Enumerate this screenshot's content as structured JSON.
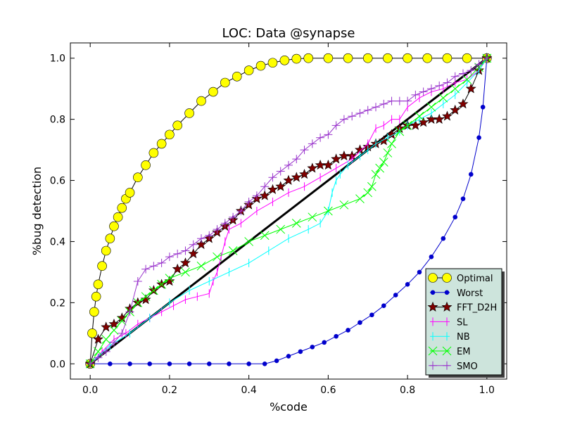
{
  "chart_data": {
    "type": "line",
    "title": "LOC: Data @synapse",
    "xlabel": "%code",
    "ylabel": "%bug detection",
    "xlim": [
      -0.05,
      1.05
    ],
    "ylim": [
      -0.05,
      1.05
    ],
    "xticks": [
      "0.0",
      "0.2",
      "0.4",
      "0.6",
      "0.8",
      "1.0"
    ],
    "yticks": [
      "0.0",
      "0.2",
      "0.4",
      "0.6",
      "0.8",
      "1.0"
    ],
    "grid": false,
    "legend_position": "bottom-right",
    "series": [
      {
        "name": "Optimal",
        "color": "#ffff00",
        "marker": "circle-large",
        "x": [
          0,
          0.005,
          0.01,
          0.015,
          0.02,
          0.03,
          0.04,
          0.05,
          0.06,
          0.07,
          0.08,
          0.09,
          0.1,
          0.12,
          0.14,
          0.16,
          0.18,
          0.2,
          0.22,
          0.25,
          0.28,
          0.31,
          0.34,
          0.37,
          0.4,
          0.43,
          0.46,
          0.49,
          0.52,
          0.55,
          0.6,
          0.65,
          0.7,
          0.75,
          0.8,
          0.85,
          0.9,
          0.95,
          1.0
        ],
        "y": [
          0,
          0.1,
          0.17,
          0.22,
          0.26,
          0.32,
          0.37,
          0.41,
          0.45,
          0.48,
          0.51,
          0.54,
          0.56,
          0.61,
          0.65,
          0.69,
          0.72,
          0.75,
          0.78,
          0.82,
          0.86,
          0.89,
          0.92,
          0.94,
          0.96,
          0.975,
          0.985,
          0.993,
          0.998,
          1.0,
          1.0,
          1.0,
          1.0,
          1.0,
          1.0,
          1.0,
          1.0,
          1.0,
          1.0
        ]
      },
      {
        "name": "Worst",
        "color": "#0000cc",
        "marker": "dot",
        "x": [
          0,
          0.05,
          0.1,
          0.15,
          0.2,
          0.25,
          0.3,
          0.35,
          0.4,
          0.44,
          0.47,
          0.5,
          0.53,
          0.56,
          0.59,
          0.62,
          0.65,
          0.68,
          0.71,
          0.74,
          0.77,
          0.8,
          0.83,
          0.86,
          0.89,
          0.92,
          0.94,
          0.96,
          0.98,
          0.99,
          1.0
        ],
        "y": [
          0,
          0,
          0,
          0,
          0,
          0,
          0,
          0,
          0,
          0,
          0.01,
          0.025,
          0.04,
          0.055,
          0.07,
          0.09,
          0.11,
          0.135,
          0.16,
          0.19,
          0.225,
          0.26,
          0.3,
          0.35,
          0.41,
          0.48,
          0.54,
          0.62,
          0.74,
          0.84,
          1.0
        ]
      },
      {
        "name": "FFT_D2H",
        "color": "#800000",
        "marker": "star",
        "x": [
          0,
          0.02,
          0.04,
          0.06,
          0.08,
          0.1,
          0.12,
          0.14,
          0.16,
          0.18,
          0.2,
          0.22,
          0.24,
          0.26,
          0.28,
          0.3,
          0.32,
          0.34,
          0.36,
          0.38,
          0.4,
          0.42,
          0.44,
          0.46,
          0.48,
          0.5,
          0.52,
          0.54,
          0.56,
          0.58,
          0.6,
          0.62,
          0.64,
          0.66,
          0.68,
          0.7,
          0.72,
          0.74,
          0.76,
          0.78,
          0.8,
          0.82,
          0.84,
          0.86,
          0.88,
          0.9,
          0.92,
          0.94,
          0.96,
          0.98,
          1.0
        ],
        "y": [
          0,
          0.08,
          0.12,
          0.13,
          0.15,
          0.18,
          0.2,
          0.21,
          0.24,
          0.26,
          0.27,
          0.31,
          0.33,
          0.36,
          0.39,
          0.41,
          0.43,
          0.45,
          0.47,
          0.5,
          0.52,
          0.54,
          0.55,
          0.57,
          0.58,
          0.6,
          0.61,
          0.62,
          0.64,
          0.65,
          0.65,
          0.67,
          0.68,
          0.68,
          0.7,
          0.71,
          0.72,
          0.73,
          0.75,
          0.77,
          0.78,
          0.78,
          0.79,
          0.8,
          0.8,
          0.81,
          0.83,
          0.85,
          0.9,
          0.96,
          1.0
        ]
      },
      {
        "name": "SL",
        "color": "#ff00ff",
        "marker": "vline",
        "x": [
          0,
          0.03,
          0.06,
          0.09,
          0.12,
          0.15,
          0.18,
          0.21,
          0.24,
          0.27,
          0.3,
          0.31,
          0.32,
          0.33,
          0.34,
          0.35,
          0.38,
          0.42,
          0.46,
          0.5,
          0.54,
          0.58,
          0.62,
          0.66,
          0.7,
          0.72,
          0.74,
          0.76,
          0.78,
          0.8,
          0.83,
          0.86,
          0.89,
          0.92,
          0.95,
          0.98,
          1.0
        ],
        "y": [
          0,
          0.04,
          0.08,
          0.1,
          0.13,
          0.15,
          0.17,
          0.19,
          0.21,
          0.22,
          0.23,
          0.27,
          0.3,
          0.35,
          0.4,
          0.44,
          0.46,
          0.5,
          0.53,
          0.56,
          0.58,
          0.61,
          0.64,
          0.67,
          0.72,
          0.77,
          0.78,
          0.8,
          0.8,
          0.84,
          0.87,
          0.89,
          0.9,
          0.92,
          0.93,
          0.96,
          1.0
        ]
      },
      {
        "name": "NB",
        "color": "#00ffff",
        "marker": "vline",
        "x": [
          0,
          0.05,
          0.1,
          0.15,
          0.2,
          0.25,
          0.3,
          0.35,
          0.4,
          0.45,
          0.5,
          0.55,
          0.58,
          0.6,
          0.61,
          0.62,
          0.63,
          0.65,
          0.68,
          0.7,
          0.72,
          0.75,
          0.78,
          0.8,
          0.83,
          0.86,
          0.89,
          0.92,
          0.95,
          0.98,
          1.0
        ],
        "y": [
          0,
          0.06,
          0.1,
          0.15,
          0.2,
          0.24,
          0.27,
          0.3,
          0.33,
          0.37,
          0.41,
          0.44,
          0.46,
          0.5,
          0.56,
          0.6,
          0.62,
          0.65,
          0.68,
          0.7,
          0.72,
          0.74,
          0.76,
          0.78,
          0.8,
          0.82,
          0.85,
          0.88,
          0.92,
          0.96,
          1.0
        ]
      },
      {
        "name": "EM",
        "color": "#00ff00",
        "marker": "x",
        "x": [
          0,
          0.02,
          0.04,
          0.06,
          0.08,
          0.1,
          0.12,
          0.14,
          0.16,
          0.18,
          0.2,
          0.24,
          0.28,
          0.32,
          0.36,
          0.4,
          0.44,
          0.48,
          0.52,
          0.56,
          0.6,
          0.64,
          0.68,
          0.7,
          0.71,
          0.72,
          0.73,
          0.74,
          0.75,
          0.76,
          0.78,
          0.8,
          0.83,
          0.86,
          0.89,
          0.92,
          0.95,
          0.98,
          1.0
        ],
        "y": [
          0,
          0.04,
          0.08,
          0.11,
          0.14,
          0.17,
          0.2,
          0.22,
          0.24,
          0.26,
          0.28,
          0.3,
          0.32,
          0.35,
          0.37,
          0.4,
          0.42,
          0.44,
          0.46,
          0.48,
          0.5,
          0.52,
          0.54,
          0.56,
          0.58,
          0.62,
          0.64,
          0.66,
          0.69,
          0.72,
          0.76,
          0.78,
          0.81,
          0.84,
          0.87,
          0.9,
          0.93,
          0.97,
          1.0
        ]
      },
      {
        "name": "SMO",
        "color": "#9933cc",
        "marker": "plus",
        "x": [
          0,
          0.02,
          0.04,
          0.06,
          0.08,
          0.1,
          0.12,
          0.14,
          0.16,
          0.18,
          0.2,
          0.22,
          0.24,
          0.26,
          0.28,
          0.3,
          0.32,
          0.34,
          0.36,
          0.38,
          0.4,
          0.42,
          0.44,
          0.46,
          0.48,
          0.5,
          0.52,
          0.54,
          0.56,
          0.58,
          0.6,
          0.62,
          0.64,
          0.66,
          0.68,
          0.7,
          0.72,
          0.74,
          0.76,
          0.78,
          0.8,
          0.82,
          0.84,
          0.86,
          0.88,
          0.9,
          0.92,
          0.94,
          0.96,
          0.98,
          1.0
        ],
        "y": [
          0,
          0.02,
          0.04,
          0.07,
          0.1,
          0.17,
          0.27,
          0.31,
          0.32,
          0.33,
          0.35,
          0.36,
          0.37,
          0.39,
          0.41,
          0.42,
          0.44,
          0.46,
          0.48,
          0.5,
          0.53,
          0.55,
          0.58,
          0.61,
          0.63,
          0.65,
          0.67,
          0.7,
          0.72,
          0.74,
          0.75,
          0.78,
          0.8,
          0.81,
          0.82,
          0.83,
          0.84,
          0.85,
          0.86,
          0.86,
          0.86,
          0.88,
          0.89,
          0.9,
          0.91,
          0.92,
          0.94,
          0.95,
          0.96,
          0.98,
          1.0
        ]
      }
    ]
  }
}
